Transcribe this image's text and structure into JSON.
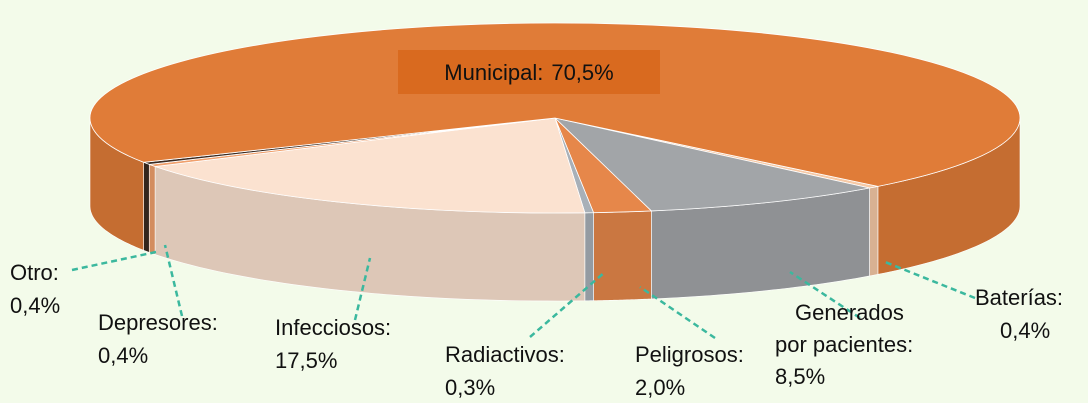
{
  "chart_data": {
    "type": "pie",
    "categories": [
      "Baterías:",
      "Generados por pacientes:",
      "Peligrosos:",
      "Radiactivos:",
      "Infecciosos:",
      "Depresores:",
      "Otro:",
      "Municipal:"
    ],
    "values": [
      0.4,
      8.5,
      2.0,
      0.3,
      17.5,
      0.4,
      0.4,
      70.5
    ],
    "value_labels": [
      "0,4%",
      "8,5%",
      "2,0%",
      "0,3%",
      "17,5%",
      "0,4%",
      "0,4%",
      "70,5%"
    ],
    "colors": [
      "#f6c9a6",
      "#a2a5a8",
      "#e6874a",
      "#a8b0b8",
      "#fbe2d0",
      "#f0a06c",
      "#3a2a20",
      "#e07c38"
    ]
  }
}
